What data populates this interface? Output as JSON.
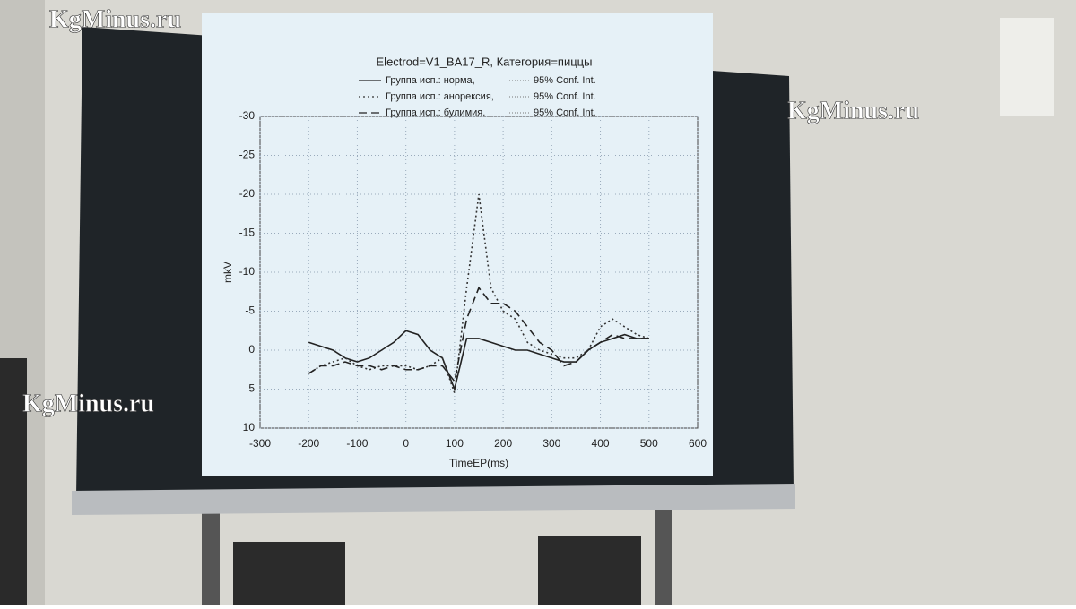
{
  "watermarks": [
    "KgMinus.ru",
    "KgMinus.ru",
    "KgMinus.ru"
  ],
  "chart_data": {
    "type": "line",
    "title": "Electrod=V1_BA17_R, Категория=пиццы",
    "ci_label": "95% Conf. Int.",
    "x_label": "TimeEP(ms)",
    "y_label": "mkV",
    "x": [
      -200,
      -175,
      -150,
      -125,
      -100,
      -75,
      -50,
      -25,
      0,
      25,
      50,
      75,
      100,
      125,
      150,
      175,
      200,
      225,
      250,
      275,
      300,
      325,
      350,
      375,
      400,
      425,
      450,
      475,
      500
    ],
    "series": [
      {
        "name": "Группа исп.: норма,",
        "color": "#222222",
        "dash": "none",
        "values": [
          -1,
          -0.5,
          0,
          1,
          1.5,
          1,
          0,
          -1,
          -2.5,
          -2,
          0,
          1,
          5,
          -1.5,
          -1.5,
          -1,
          -0.5,
          0,
          0,
          0.5,
          1,
          1.5,
          1.5,
          0,
          -1,
          -1.5,
          -2,
          -1.5,
          -1.5
        ]
      },
      {
        "name": "Группа исп.: анорексия,",
        "color": "#333333",
        "dash": "2 3",
        "values": [
          3,
          2,
          1.5,
          1,
          2,
          2.5,
          2,
          2,
          2,
          2.5,
          2,
          1,
          5.5,
          -8,
          -20,
          -8,
          -5,
          -4,
          -1,
          0,
          0.5,
          1,
          1,
          0,
          -3,
          -4,
          -3,
          -2,
          -1.5
        ]
      },
      {
        "name": "Группа исп.: булимия,",
        "color": "#222222",
        "dash": "9 5",
        "values": [
          3,
          2,
          2,
          1.5,
          2,
          2,
          2.5,
          2,
          2.5,
          2.5,
          2,
          2,
          4,
          -4,
          -8,
          -6,
          -6,
          -5,
          -3,
          -1,
          0,
          2,
          1.5,
          0,
          -1,
          -2,
          -1.5,
          -1.5,
          -1.5
        ]
      }
    ],
    "xlim": [
      -300,
      600
    ],
    "xticks": [
      -300,
      -200,
      -100,
      0,
      100,
      200,
      300,
      400,
      500,
      600
    ],
    "ylim": [
      -30,
      10
    ],
    "yticks": [
      -30,
      -25,
      -20,
      -15,
      -10,
      -5,
      0,
      5,
      10
    ],
    "grid": true
  }
}
